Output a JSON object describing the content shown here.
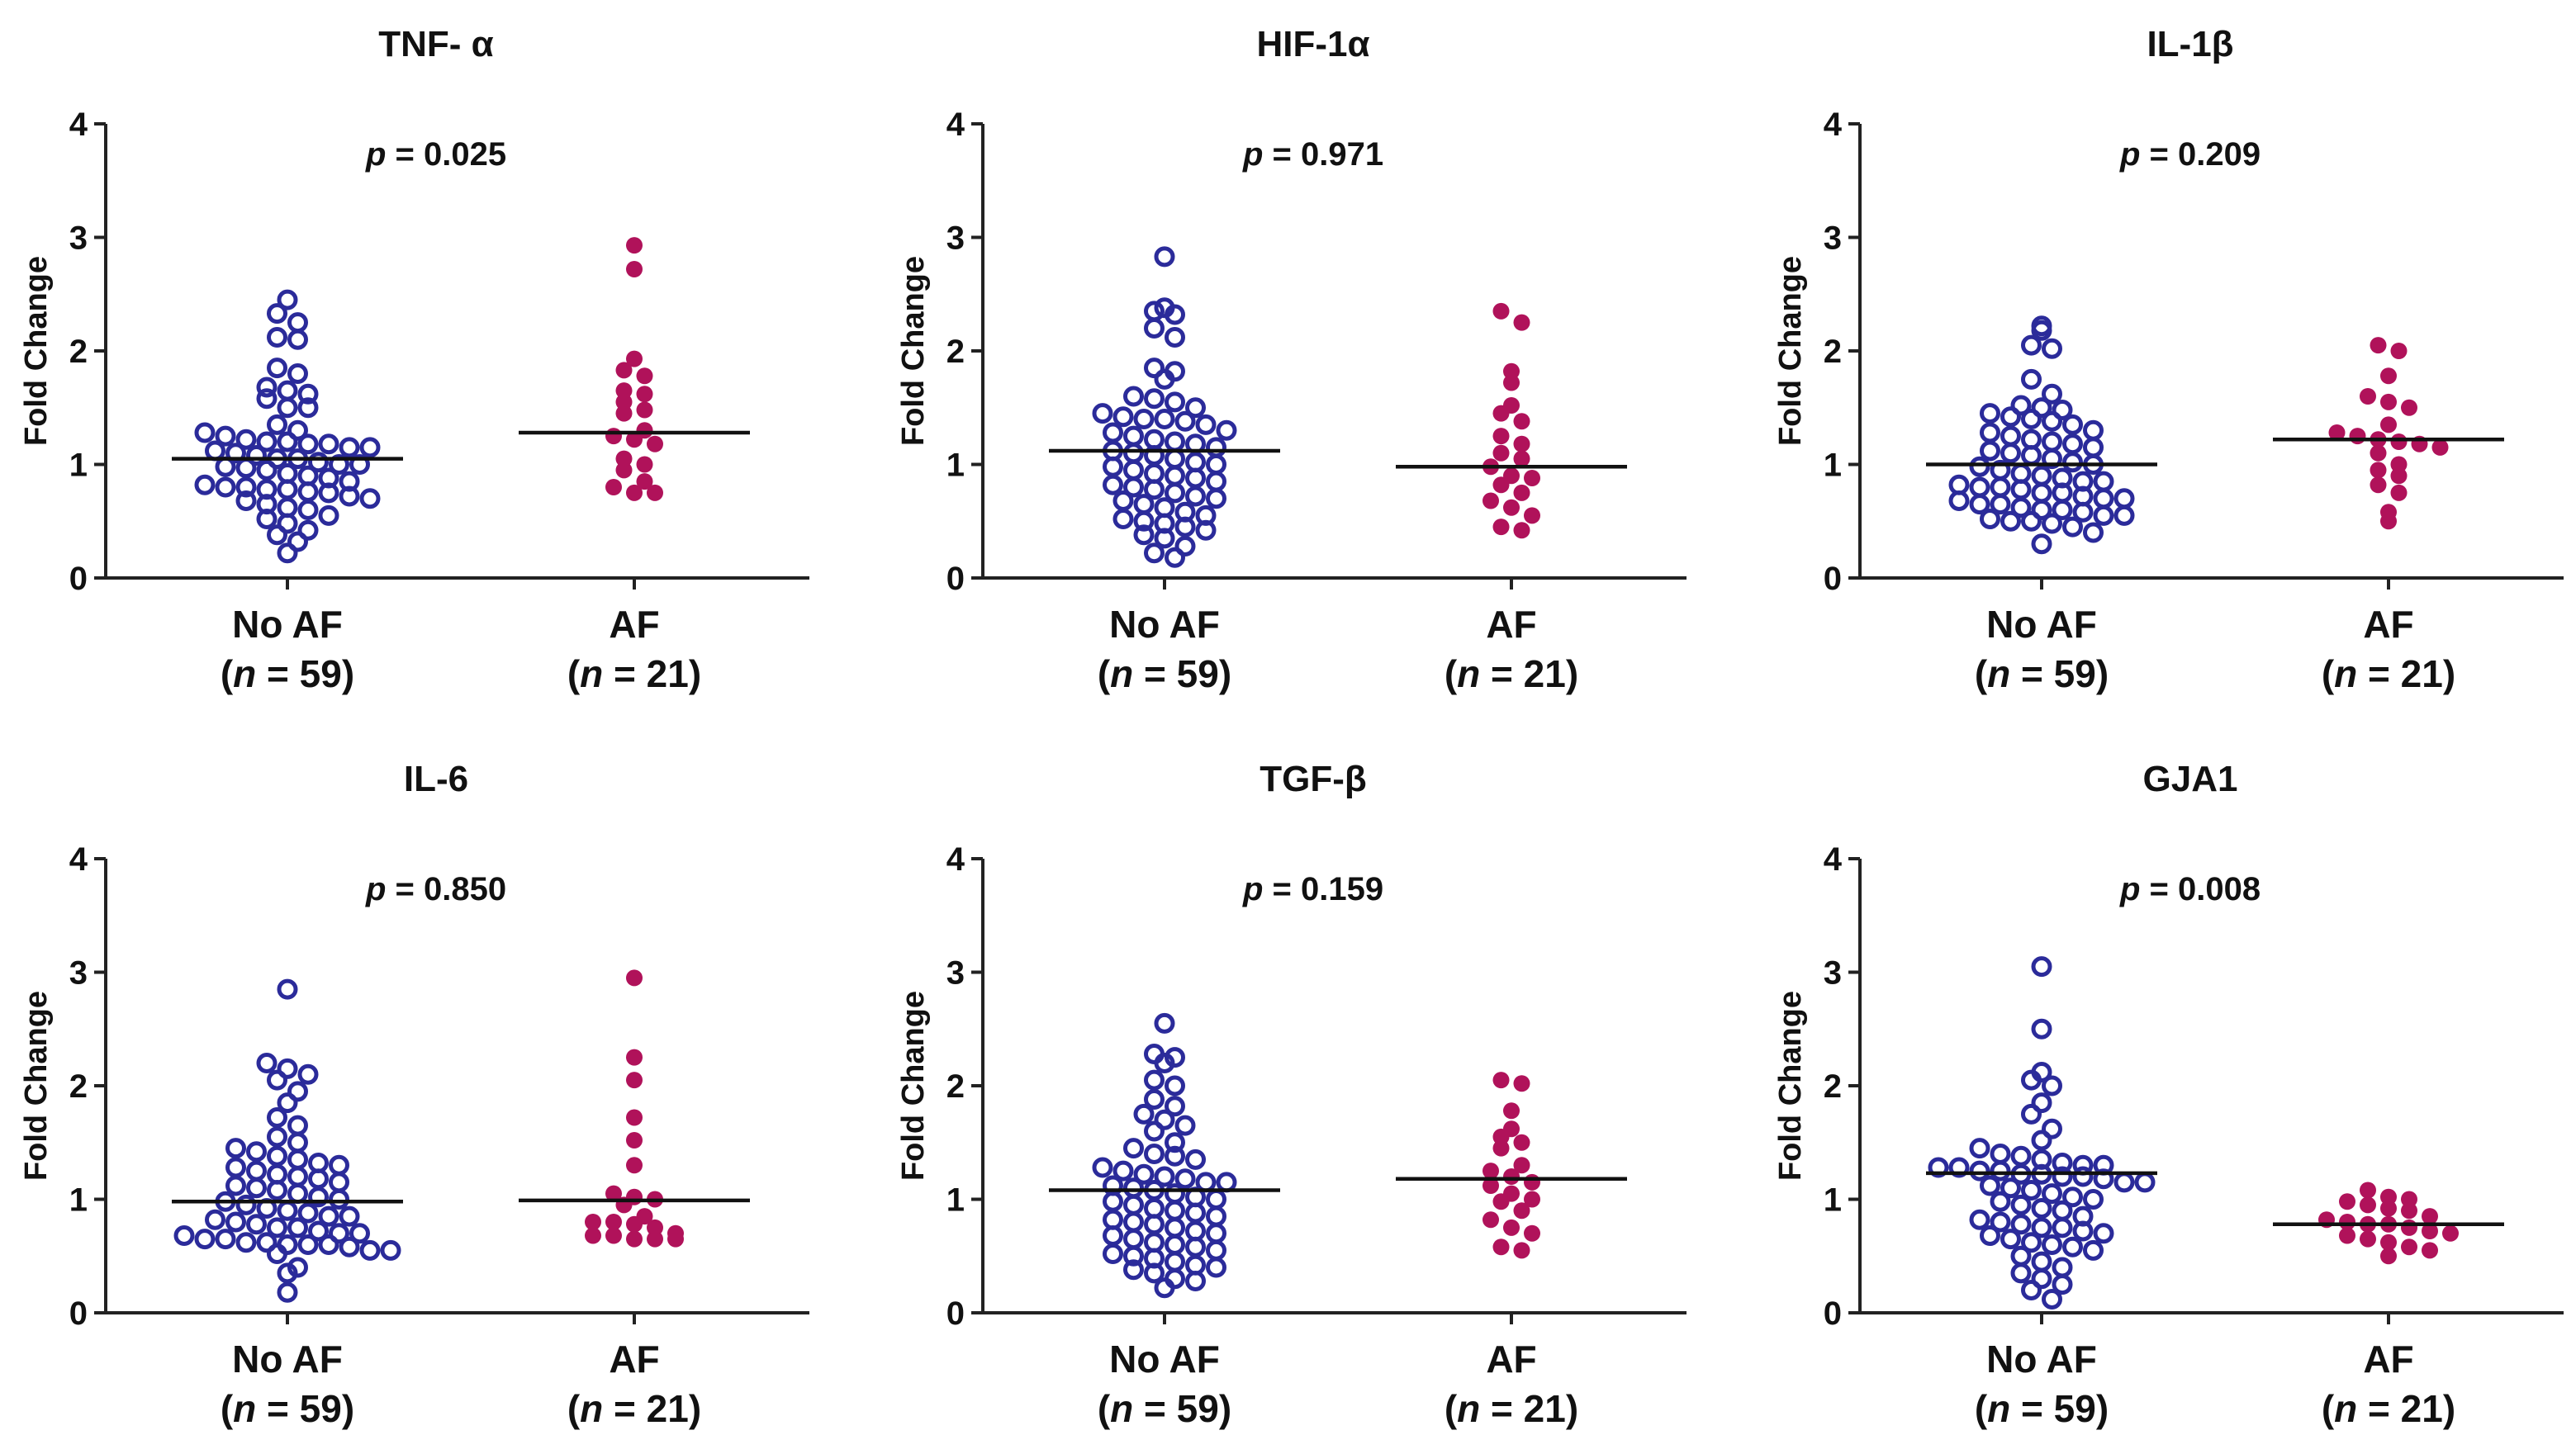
{
  "figure": {
    "ylabel": "Fold Change",
    "yticks": [
      "0",
      "1",
      "2",
      "3",
      "4"
    ],
    "groups": [
      {
        "name": "No AF",
        "n_label": "(n = 59)",
        "n_prefix": "(",
        "n_italic": "n",
        "n_suffix": " = 59)"
      },
      {
        "name": "AF",
        "n_label": "(n = 21)",
        "n_prefix": "(",
        "n_italic": "n",
        "n_suffix": " = 21)"
      }
    ],
    "colors": {
      "no_af": "#2b2b9a",
      "af": "#b0125a"
    }
  },
  "chart_data": [
    {
      "type": "scatter",
      "title": "TNF- α",
      "p_label": "p",
      "p_value": "= 0.025",
      "ylabel": "Fold Change",
      "ylim": [
        0,
        4
      ],
      "categories": [
        "No AF",
        "AF"
      ],
      "series": [
        {
          "name": "No AF",
          "n": 59,
          "mean": 1.05,
          "values": [
            2.45,
            2.33,
            2.25,
            2.12,
            2.1,
            1.85,
            1.8,
            1.68,
            1.65,
            1.62,
            1.58,
            1.5,
            1.5,
            1.35,
            1.3,
            1.28,
            1.25,
            1.22,
            1.2,
            1.2,
            1.18,
            1.18,
            1.15,
            1.15,
            1.12,
            1.1,
            1.08,
            1.05,
            1.05,
            1.02,
            1.0,
            1.0,
            0.98,
            0.97,
            0.95,
            0.92,
            0.9,
            0.88,
            0.85,
            0.82,
            0.8,
            0.8,
            0.78,
            0.78,
            0.76,
            0.75,
            0.72,
            0.7,
            0.68,
            0.65,
            0.62,
            0.6,
            0.55,
            0.52,
            0.48,
            0.42,
            0.38,
            0.32,
            0.22
          ]
        },
        {
          "name": "AF",
          "n": 21,
          "mean": 1.28,
          "values": [
            2.93,
            2.72,
            1.93,
            1.83,
            1.78,
            1.65,
            1.62,
            1.55,
            1.48,
            1.45,
            1.3,
            1.25,
            1.22,
            1.18,
            1.05,
            1.0,
            0.95,
            0.85,
            0.8,
            0.75,
            0.75
          ]
        }
      ]
    },
    {
      "type": "scatter",
      "title": "HIF-1α",
      "p_label": "p",
      "p_value": "= 0.971",
      "ylabel": "Fold Change",
      "ylim": [
        0,
        4
      ],
      "categories": [
        "No AF",
        "AF"
      ],
      "series": [
        {
          "name": "No AF",
          "n": 59,
          "mean": 1.12,
          "values": [
            2.83,
            2.38,
            2.35,
            2.32,
            2.2,
            2.12,
            1.85,
            1.82,
            1.75,
            1.6,
            1.58,
            1.55,
            1.5,
            1.45,
            1.42,
            1.4,
            1.4,
            1.38,
            1.35,
            1.3,
            1.28,
            1.25,
            1.22,
            1.2,
            1.18,
            1.15,
            1.12,
            1.1,
            1.08,
            1.05,
            1.02,
            1.0,
            0.98,
            0.95,
            0.92,
            0.9,
            0.88,
            0.85,
            0.82,
            0.8,
            0.78,
            0.75,
            0.72,
            0.7,
            0.68,
            0.65,
            0.62,
            0.58,
            0.55,
            0.52,
            0.5,
            0.48,
            0.45,
            0.42,
            0.38,
            0.35,
            0.28,
            0.22,
            0.18
          ]
        },
        {
          "name": "AF",
          "n": 21,
          "mean": 0.98,
          "values": [
            2.35,
            2.25,
            1.82,
            1.72,
            1.52,
            1.45,
            1.38,
            1.25,
            1.18,
            1.1,
            1.05,
            0.98,
            0.9,
            0.88,
            0.82,
            0.75,
            0.68,
            0.62,
            0.55,
            0.45,
            0.42
          ]
        }
      ]
    },
    {
      "type": "scatter",
      "title": "IL-1β",
      "p_label": "p",
      "p_value": "= 0.209",
      "ylabel": "Fold Change",
      "ylim": [
        0,
        4
      ],
      "categories": [
        "No AF",
        "AF"
      ],
      "series": [
        {
          "name": "No AF",
          "n": 59,
          "mean": 1.0,
          "values": [
            2.22,
            2.18,
            2.05,
            2.02,
            1.75,
            1.62,
            1.52,
            1.5,
            1.48,
            1.45,
            1.42,
            1.4,
            1.38,
            1.35,
            1.3,
            1.28,
            1.25,
            1.22,
            1.2,
            1.18,
            1.15,
            1.12,
            1.1,
            1.08,
            1.05,
            1.02,
            1.0,
            0.98,
            0.95,
            0.92,
            0.9,
            0.88,
            0.85,
            0.85,
            0.82,
            0.8,
            0.8,
            0.78,
            0.75,
            0.75,
            0.72,
            0.7,
            0.7,
            0.68,
            0.65,
            0.65,
            0.62,
            0.6,
            0.6,
            0.58,
            0.55,
            0.55,
            0.52,
            0.5,
            0.5,
            0.48,
            0.45,
            0.4,
            0.3
          ]
        },
        {
          "name": "AF",
          "n": 21,
          "mean": 1.22,
          "values": [
            2.05,
            2.0,
            1.78,
            1.6,
            1.55,
            1.5,
            1.35,
            1.28,
            1.25,
            1.22,
            1.2,
            1.18,
            1.15,
            1.1,
            1.0,
            0.95,
            0.9,
            0.82,
            0.75,
            0.58,
            0.5
          ]
        }
      ]
    },
    {
      "type": "scatter",
      "title": "IL-6",
      "p_label": "p",
      "p_value": "= 0.850",
      "ylabel": "Fold Change",
      "ylim": [
        0,
        4
      ],
      "categories": [
        "No AF",
        "AF"
      ],
      "series": [
        {
          "name": "No AF",
          "n": 59,
          "mean": 0.98,
          "values": [
            2.85,
            2.2,
            2.15,
            2.1,
            2.05,
            1.95,
            1.85,
            1.72,
            1.65,
            1.55,
            1.5,
            1.45,
            1.42,
            1.38,
            1.35,
            1.32,
            1.3,
            1.28,
            1.25,
            1.22,
            1.2,
            1.18,
            1.15,
            1.12,
            1.1,
            1.08,
            1.05,
            1.02,
            1.0,
            0.98,
            0.95,
            0.92,
            0.9,
            0.88,
            0.85,
            0.85,
            0.82,
            0.8,
            0.78,
            0.75,
            0.75,
            0.72,
            0.7,
            0.7,
            0.68,
            0.65,
            0.65,
            0.62,
            0.62,
            0.6,
            0.6,
            0.6,
            0.58,
            0.55,
            0.55,
            0.52,
            0.4,
            0.35,
            0.18
          ]
        },
        {
          "name": "AF",
          "n": 21,
          "mean": 0.99,
          "values": [
            2.95,
            2.25,
            2.05,
            1.72,
            1.52,
            1.3,
            1.05,
            1.02,
            1.0,
            0.95,
            0.85,
            0.8,
            0.8,
            0.78,
            0.75,
            0.7,
            0.68,
            0.68,
            0.65,
            0.65,
            0.65
          ]
        }
      ]
    },
    {
      "type": "scatter",
      "title": "TGF-β",
      "p_label": "p",
      "p_value": "= 0.159",
      "ylabel": "Fold Change",
      "ylim": [
        0,
        4
      ],
      "categories": [
        "No AF",
        "AF"
      ],
      "series": [
        {
          "name": "No AF",
          "n": 59,
          "mean": 1.08,
          "values": [
            2.55,
            2.28,
            2.25,
            2.2,
            2.05,
            2.0,
            1.88,
            1.82,
            1.75,
            1.7,
            1.65,
            1.6,
            1.5,
            1.45,
            1.4,
            1.38,
            1.35,
            1.28,
            1.25,
            1.22,
            1.2,
            1.18,
            1.15,
            1.15,
            1.12,
            1.1,
            1.08,
            1.05,
            1.02,
            1.0,
            0.98,
            0.95,
            0.92,
            0.9,
            0.88,
            0.85,
            0.82,
            0.8,
            0.78,
            0.75,
            0.72,
            0.7,
            0.68,
            0.65,
            0.62,
            0.6,
            0.58,
            0.55,
            0.52,
            0.5,
            0.48,
            0.45,
            0.42,
            0.4,
            0.38,
            0.35,
            0.3,
            0.28,
            0.22
          ]
        },
        {
          "name": "AF",
          "n": 21,
          "mean": 1.18,
          "values": [
            2.05,
            2.02,
            1.78,
            1.62,
            1.55,
            1.5,
            1.45,
            1.3,
            1.25,
            1.2,
            1.15,
            1.12,
            1.05,
            1.0,
            0.98,
            0.9,
            0.82,
            0.75,
            0.7,
            0.58,
            0.55
          ]
        }
      ]
    },
    {
      "type": "scatter",
      "title": "GJA1",
      "p_label": "p",
      "p_value": "= 0.008",
      "ylabel": "Fold Change",
      "ylim": [
        0,
        4
      ],
      "categories": [
        "No AF",
        "AF"
      ],
      "series": [
        {
          "name": "No AF",
          "n": 59,
          "mean": 1.23,
          "values": [
            3.05,
            2.5,
            2.12,
            2.05,
            2.0,
            1.85,
            1.75,
            1.62,
            1.52,
            1.45,
            1.4,
            1.38,
            1.35,
            1.32,
            1.3,
            1.3,
            1.28,
            1.28,
            1.25,
            1.25,
            1.22,
            1.22,
            1.2,
            1.2,
            1.18,
            1.15,
            1.15,
            1.12,
            1.1,
            1.08,
            1.05,
            1.02,
            1.0,
            0.98,
            0.95,
            0.92,
            0.9,
            0.85,
            0.82,
            0.8,
            0.78,
            0.75,
            0.75,
            0.72,
            0.7,
            0.68,
            0.65,
            0.62,
            0.6,
            0.58,
            0.55,
            0.5,
            0.45,
            0.4,
            0.35,
            0.3,
            0.25,
            0.2,
            0.12
          ]
        },
        {
          "name": "AF",
          "n": 21,
          "mean": 0.78,
          "values": [
            1.08,
            1.02,
            1.0,
            0.98,
            0.95,
            0.92,
            0.9,
            0.85,
            0.82,
            0.8,
            0.78,
            0.78,
            0.75,
            0.72,
            0.7,
            0.68,
            0.65,
            0.62,
            0.58,
            0.55,
            0.5
          ]
        }
      ]
    }
  ]
}
